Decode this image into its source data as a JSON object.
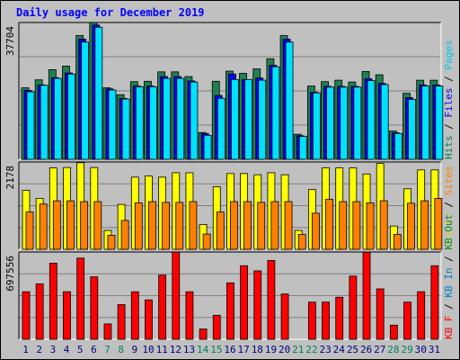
{
  "chart_data": {
    "title": "Daily usage for December 2019",
    "type": "bar",
    "x": [
      "1",
      "2",
      "3",
      "4",
      "5",
      "6",
      "7",
      "8",
      "9",
      "10",
      "11",
      "12",
      "13",
      "14",
      "15",
      "16",
      "17",
      "18",
      "19",
      "20",
      "21",
      "22",
      "23",
      "24",
      "25",
      "26",
      "27",
      "28",
      "29",
      "30",
      "31"
    ],
    "weekend_days": [
      7,
      8,
      14,
      15,
      21,
      22,
      28,
      29
    ],
    "panels": [
      {
        "name": "pages-files-hits",
        "ymax_label": "37704",
        "ymax": 37704,
        "legend": [
          {
            "text": "Hits",
            "color": "#00805c"
          },
          {
            "text": "Files",
            "color": "#0000ff"
          },
          {
            "text": "Pages",
            "color": "#00c8e0"
          }
        ],
        "series": [
          {
            "name": "Hits",
            "color": "#208050",
            "values": [
              19700,
              21900,
              24700,
              25700,
              34100,
              38700,
              19700,
              17800,
              21400,
              21500,
              24100,
              24100,
              22800,
              7400,
              21500,
              24300,
              23700,
              24900,
              27700,
              34100,
              6900,
              20200,
              21400,
              21800,
              21300,
              24200,
              23300,
              7800,
              18200,
              21800,
              21800
            ]
          },
          {
            "name": "Files",
            "color": "#0000ff",
            "values": [
              19000,
              20500,
              22500,
              23800,
              33100,
              37000,
              19400,
              16800,
              20200,
              20200,
              22800,
              22800,
              21600,
              7100,
              17600,
              23500,
              22000,
              22400,
              25900,
              33100,
              6500,
              18500,
              20100,
              20100,
              20100,
              22200,
              20900,
              7300,
              17000,
              20500,
              20500
            ]
          },
          {
            "name": "Pages",
            "color": "#00e0ff",
            "values": [
              18600,
              20400,
              22300,
              23500,
              32300,
              36400,
              19100,
              16600,
              20000,
              20000,
              22300,
              22300,
              21300,
              6600,
              16800,
              22000,
              22000,
              21800,
              25500,
              32300,
              6300,
              18300,
              19900,
              19900,
              19900,
              21700,
              20600,
              7100,
              16500,
              20200,
              20200
            ]
          }
        ]
      },
      {
        "name": "visits-sites",
        "ymax_label": "2178",
        "ymax": 2178,
        "legend": [
          {
            "text": "Visits",
            "color": "#d8d800"
          },
          {
            "text": "Sites",
            "color": "#ff8000"
          }
        ],
        "series": [
          {
            "name": "Visits",
            "color": "#ffff00",
            "values": [
              1470,
              1270,
              2030,
              2040,
              2160,
              2040,
              470,
              1120,
              1800,
              1830,
              1800,
              1910,
              1910,
              620,
              1560,
              1890,
              1890,
              1860,
              1910,
              1860,
              470,
              1490,
              2030,
              2030,
              2030,
              1880,
              2140,
              580,
              1510,
              1980,
              1980
            ]
          },
          {
            "name": "Sites",
            "color": "#ff8000",
            "values": [
              930,
              1130,
              1210,
              1210,
              1190,
              1190,
              350,
              720,
              1160,
              1190,
              1170,
              1170,
              1190,
              380,
              930,
              1190,
              1190,
              1170,
              1190,
              1190,
              370,
              900,
              1250,
              1190,
              1190,
              1160,
              1210,
              370,
              1150,
              1210,
              1270
            ]
          }
        ]
      },
      {
        "name": "kbf-kbin-kbout",
        "ymax_label": "697556",
        "ymax": 697556,
        "legend": [
          {
            "text": "KB F",
            "color": "#ff0000"
          },
          {
            "text": "KB In",
            "color": "#0080c0"
          },
          {
            "text": "KB Out",
            "color": "#008060"
          }
        ],
        "series": [
          {
            "name": "KB F",
            "color": "#ff0000",
            "values": [
              380000,
              443000,
              608000,
              380000,
              649000,
              499000,
              123000,
              277000,
              380000,
              315000,
              513000,
              697000,
              380000,
              82000,
              192000,
              451000,
              588000,
              547000,
              630000,
              362000,
              0,
              297000,
              297000,
              336000,
              505000,
              697000,
              403000,
              113000,
              297000,
              380000,
              588000
            ]
          }
        ]
      }
    ]
  }
}
